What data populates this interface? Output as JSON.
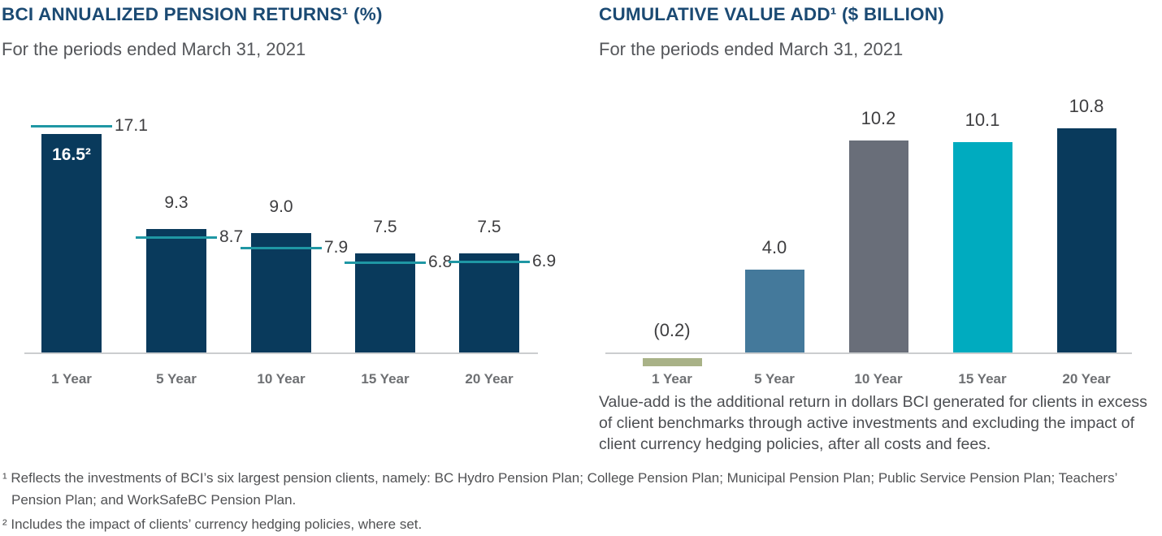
{
  "page": {
    "background": "#ffffff"
  },
  "charts": [
    {
      "id": "pension-returns",
      "title": "BCI ANNUALIZED PENSION RETURNS¹ (%)",
      "subtitle": "For the periods ended March 31, 2021",
      "chart_data": {
        "type": "bar",
        "categories": [
          "1 Year",
          "5 Year",
          "10 Year",
          "15 Year",
          "20 Year"
        ],
        "series": [
          {
            "name": "BCI annualized return",
            "type": "bar",
            "values": [
              16.5,
              9.3,
              9.0,
              7.5,
              7.5
            ],
            "labels": [
              "16.5²",
              "9.3",
              "9.0",
              "7.5",
              "7.5"
            ],
            "color": "#093a5c"
          },
          {
            "name": "Benchmark",
            "type": "tick-line",
            "values": [
              17.1,
              8.7,
              7.9,
              6.8,
              6.9
            ],
            "labels": [
              "17.1",
              "8.7",
              "7.9",
              "6.8",
              "6.9"
            ],
            "color": "#1f97a4"
          }
        ],
        "ylim": [
          0,
          20.5
        ],
        "grid": false,
        "legend": "none",
        "first_bar_label_inside": true
      }
    },
    {
      "id": "value-add",
      "title": "CUMULATIVE VALUE ADD¹ ($ BILLION)",
      "subtitle": "For the periods ended March 31, 2021",
      "chart_data": {
        "type": "bar",
        "categories": [
          "1 Year",
          "5 Year",
          "10 Year",
          "15 Year",
          "20 Year"
        ],
        "values": [
          -0.2,
          4.0,
          10.2,
          10.1,
          10.8
        ],
        "labels": [
          "(0.2)",
          "4.0",
          "10.2",
          "10.1",
          "10.8"
        ],
        "bar_colors": [
          "#a9b287",
          "#44799b",
          "#696e79",
          "#00abbf",
          "#093a5c"
        ],
        "ylim": [
          -0.6,
          12.5
        ],
        "grid": false,
        "legend": "none"
      },
      "caption": "Value-add is the additional return in dollars BCI generated for clients in excess of client benchmarks through active investments and excluding the impact of client currency hedging policies, after all costs and fees."
    }
  ],
  "footnotes": [
    "¹ Reflects the investments of BCI’s six largest pension clients, namely: BC Hydro Pension Plan; College Pension Plan; Municipal Pension Plan; Public Service Pension Plan; Teachers’ Pension Plan; and WorkSafeBC Pension Plan.",
    "² Includes the impact of clients’ currency hedging policies, where set."
  ],
  "colors": {
    "title_navy": "#1b4a73",
    "bar_navy": "#093a5c",
    "benchmark_teal": "#1f97a4",
    "steel_blue": "#44799b",
    "gray": "#696e79",
    "cyan": "#00abbf",
    "olive_green": "#a9b287",
    "axis_gray": "#cbcdcf"
  }
}
